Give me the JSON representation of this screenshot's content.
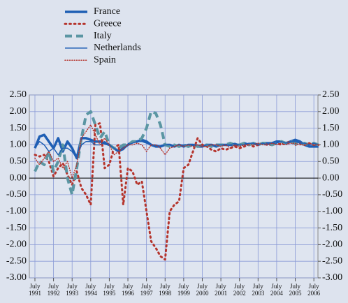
{
  "chart_data": {
    "type": "line",
    "x": [
      1991.5,
      1991.75,
      1992,
      1992.25,
      1992.5,
      1992.75,
      1993,
      1993.25,
      1993.5,
      1993.75,
      1994,
      1994.25,
      1994.5,
      1994.75,
      1995,
      1995.25,
      1995.5,
      1995.75,
      1996,
      1996.25,
      1996.5,
      1996.75,
      1997,
      1997.25,
      1997.5,
      1997.75,
      1998,
      1998.25,
      1998.5,
      1998.75,
      1999,
      1999.25,
      1999.5,
      1999.75,
      2000,
      2000.25,
      2000.5,
      2000.75,
      2001,
      2001.25,
      2001.5,
      2001.75,
      2002,
      2002.25,
      2002.5,
      2002.75,
      2003,
      2003.25,
      2003.5,
      2003.75,
      2004,
      2004.25,
      2004.5,
      2004.75,
      2005,
      2005.25,
      2005.5,
      2005.75,
      2006,
      2006.25,
      2006.5,
      2006.75
    ],
    "series": [
      {
        "name": "France",
        "color": "#1f5fb4",
        "width": 3.5,
        "dash": "solid",
        "values": [
          0.9,
          1.25,
          1.3,
          1.1,
          0.9,
          1.2,
          0.8,
          1.1,
          0.9,
          0.6,
          1.2,
          1.2,
          1.15,
          1.1,
          1.1,
          1.05,
          1.0,
          0.9,
          0.8,
          0.9,
          1.0,
          1.1,
          1.1,
          1.15,
          1.1,
          1.0,
          0.95,
          0.95,
          1.0,
          1.0,
          0.95,
          1.0,
          0.95,
          1.0,
          1.0,
          0.95,
          0.95,
          1.0,
          1.0,
          0.95,
          1.0,
          1.0,
          1.0,
          1.0,
          1.0,
          1.05,
          1.0,
          1.05,
          1.0,
          1.05,
          1.05,
          1.05,
          1.1,
          1.1,
          1.05,
          1.1,
          1.15,
          1.1,
          1.0,
          0.95,
          0.95,
          0.95
        ]
      },
      {
        "name": "Greece",
        "color": "#b5342c",
        "width": 3,
        "dash": "dotted",
        "values": [
          0.7,
          0.65,
          0.7,
          0.5,
          0.05,
          0.3,
          0.45,
          0.1,
          -0.2,
          0.2,
          -0.3,
          -0.5,
          -0.8,
          1.6,
          1.65,
          0.3,
          0.4,
          0.9,
          1.0,
          -0.8,
          0.3,
          0.2,
          -0.2,
          -0.1,
          -1.0,
          -1.9,
          -2.1,
          -2.35,
          -2.45,
          -1.0,
          -0.8,
          -0.7,
          0.3,
          0.4,
          0.8,
          1.2,
          1.0,
          0.95,
          0.85,
          0.8,
          0.9,
          0.85,
          0.9,
          0.95,
          0.9,
          0.95,
          1.0,
          0.95,
          1.0,
          1.05,
          1.0,
          1.0,
          1.05,
          1.0,
          1.05,
          1.1,
          1.0,
          1.05,
          1.0,
          1.05,
          1.0,
          1.0
        ]
      },
      {
        "name": "Italy",
        "color": "#5b96a3",
        "width": 4,
        "dash": "dashed",
        "values": [
          0.2,
          0.5,
          0.4,
          0.8,
          0.2,
          0.5,
          1.0,
          0.0,
          -0.5,
          0.3,
          1.2,
          1.9,
          2.0,
          1.6,
          1.2,
          1.4,
          1.0,
          0.9,
          0.9,
          1.0,
          1.0,
          1.1,
          1.1,
          1.2,
          1.5,
          2.0,
          1.95,
          1.6,
          1.0,
          0.95,
          1.0,
          0.95,
          1.0,
          0.95,
          1.0,
          0.95,
          1.0,
          1.0,
          0.95,
          1.0,
          1.0,
          1.0,
          1.05,
          1.0,
          1.0,
          1.05,
          1.0,
          1.05,
          1.0,
          1.05,
          1.05,
          1.0,
          1.05,
          1.1,
          1.05,
          1.1,
          1.05,
          1.0,
          1.05,
          1.0,
          1.05,
          1.0
        ]
      },
      {
        "name": "Netherlands",
        "color": "#1f5fb4",
        "width": 1.5,
        "dash": "solid",
        "values": [
          0.9,
          1.1,
          1.0,
          0.8,
          0.9,
          0.7,
          0.9,
          0.9,
          0.8,
          0.6,
          1.0,
          1.1,
          1.1,
          1.0,
          1.0,
          1.1,
          1.0,
          0.9,
          0.8,
          0.85,
          1.0,
          1.05,
          1.1,
          1.1,
          1.05,
          1.0,
          1.0,
          0.95,
          1.0,
          1.0,
          0.95,
          1.0,
          1.0,
          1.0,
          1.0,
          1.0,
          0.95,
          1.0,
          1.0,
          1.0,
          1.0,
          1.0,
          1.0,
          1.05,
          1.0,
          1.0,
          1.05,
          1.05,
          1.0,
          1.05,
          1.0,
          1.05,
          1.05,
          1.1,
          1.05,
          1.1,
          1.1,
          1.05,
          1.05,
          1.0,
          1.05,
          1.0
        ]
      },
      {
        "name": "Spain",
        "color": "#b5342c",
        "width": 1.5,
        "dash": "dotted",
        "values": [
          0.6,
          0.4,
          0.6,
          0.8,
          0.5,
          0.6,
          0.3,
          0.5,
          0.0,
          0.4,
          1.2,
          1.4,
          1.6,
          1.3,
          1.0,
          1.2,
          1.0,
          0.7,
          0.8,
          0.9,
          1.0,
          1.0,
          1.05,
          1.0,
          0.8,
          1.0,
          1.0,
          0.9,
          0.7,
          0.9,
          0.95,
          1.0,
          0.95,
          1.0,
          0.95,
          1.0,
          0.95,
          0.95,
          1.0,
          1.0,
          0.95,
          1.0,
          0.9,
          1.0,
          0.95,
          1.0,
          1.0,
          1.0,
          1.05,
          1.0,
          1.0,
          1.05,
          1.0,
          1.05,
          1.0,
          1.05,
          1.05,
          1.0,
          1.0,
          1.05,
          1.0,
          1.0
        ]
      }
    ],
    "xlim": [
      1991.2,
      2006.72
    ],
    "xticks": [
      {
        "value": 1991.5,
        "label": "July 1991"
      },
      {
        "value": 1992.5,
        "label": "July 1992"
      },
      {
        "value": 1993.5,
        "label": "July 1993"
      },
      {
        "value": 1994.5,
        "label": "July 1994"
      },
      {
        "value": 1995.5,
        "label": "July 1995"
      },
      {
        "value": 1996.5,
        "label": "July 1996"
      },
      {
        "value": 1997.5,
        "label": "July 1997"
      },
      {
        "value": 1998.5,
        "label": "July 1998"
      },
      {
        "value": 1999.5,
        "label": "July 1999"
      },
      {
        "value": 2000.5,
        "label": "July 2000"
      },
      {
        "value": 2001.5,
        "label": "July 2001"
      },
      {
        "value": 2002.5,
        "label": "July 2002"
      },
      {
        "value": 2003.5,
        "label": "July 2003"
      },
      {
        "value": 2004.5,
        "label": "July 2004"
      },
      {
        "value": 2005.5,
        "label": "July 2005"
      },
      {
        "value": 2006.5,
        "label": "July 2006"
      }
    ],
    "ylim": [
      -3,
      2.5
    ],
    "yticks": [
      {
        "value": 2.5,
        "label": "2.50"
      },
      {
        "value": 2,
        "label": "2.00"
      },
      {
        "value": 1.5,
        "label": "1.50"
      },
      {
        "value": 1,
        "label": "1.00"
      },
      {
        "value": 0.5,
        "label": "0.50"
      },
      {
        "value": 0,
        "label": "0.00"
      },
      {
        "value": -0.5,
        "label": "-0.50"
      },
      {
        "value": -1,
        "label": "-1.00"
      },
      {
        "value": -1.5,
        "label": "-1.50"
      },
      {
        "value": -2,
        "label": "-2.00"
      },
      {
        "value": -2.5,
        "label": "-2.50"
      },
      {
        "value": -3,
        "label": "-3.00"
      }
    ],
    "y2lim": [
      -3,
      2.5
    ],
    "y2ticks": [
      {
        "value": 2.5,
        "label": "2.50"
      },
      {
        "value": 2,
        "label": "2.00"
      },
      {
        "value": 1.5,
        "label": "1.50"
      },
      {
        "value": 1,
        "label": "1.00"
      },
      {
        "value": 0.5,
        "label": "0.50"
      },
      {
        "value": 0,
        "label": "0.00"
      },
      {
        "value": -0.5,
        "label": "-0.50"
      },
      {
        "value": -1,
        "label": "-1.00"
      },
      {
        "value": -1.5,
        "label": "-1.50"
      },
      {
        "value": -2,
        "label": "-2.00"
      },
      {
        "value": -2.5,
        "label": "-2.50"
      },
      {
        "value": -3,
        "label": "-3.00"
      }
    ],
    "grid": true,
    "legend": "top-left"
  }
}
